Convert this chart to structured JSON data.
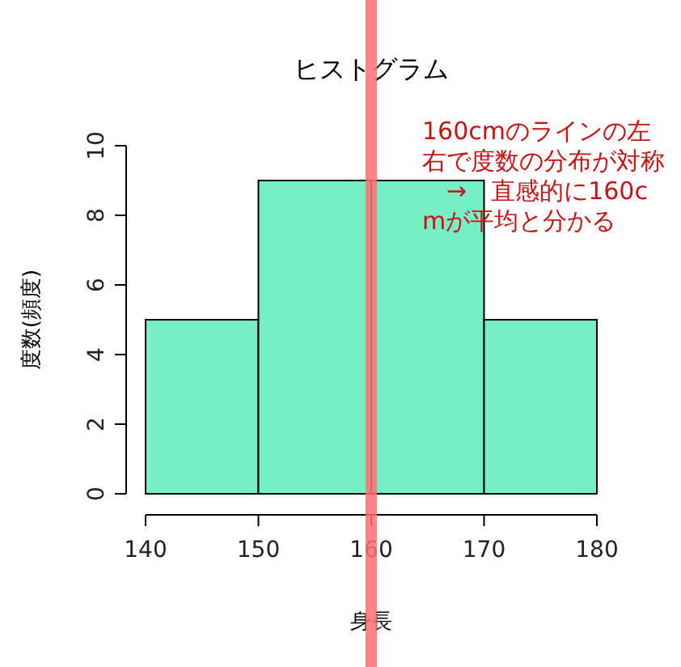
{
  "chart_data": {
    "type": "histogram",
    "title": "ヒストグラム",
    "xlabel": "身長",
    "ylabel": "度数(頻度)",
    "bins": [
      140,
      150,
      160,
      170,
      180
    ],
    "values": [
      5,
      9,
      9,
      5
    ],
    "color": "#76eec6",
    "xlim": [
      140,
      180
    ],
    "xticks": [
      140,
      150,
      160,
      170,
      180
    ],
    "ylim": [
      0,
      10
    ],
    "yticks": [
      0,
      2,
      4,
      6,
      8,
      10
    ],
    "grid": false,
    "ref_lines": [
      {
        "axis": "x",
        "value": 160,
        "color": "#ff7070"
      }
    ],
    "annotations": [
      "160cmのラインの左右で度数の分布が対称　→　直感的に160cmが平均と分かる"
    ]
  }
}
